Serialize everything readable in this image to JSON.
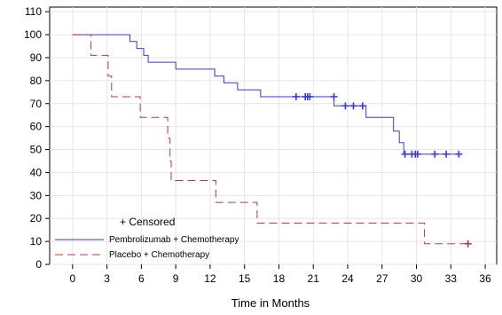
{
  "chart_data": {
    "type": "line",
    "step": true,
    "xlabel": "Time in Months",
    "ylabel": "",
    "xlim": [
      -2,
      37
    ],
    "ylim": [
      0,
      112
    ],
    "xticks": [
      0,
      3,
      6,
      9,
      12,
      15,
      18,
      21,
      24,
      27,
      30,
      33,
      36
    ],
    "yticks": [
      0,
      10,
      20,
      30,
      40,
      50,
      60,
      70,
      80,
      90,
      100,
      110
    ],
    "grid": true,
    "legend_position": "bottom-left",
    "legend_title": "+ Censored",
    "series": [
      {
        "name": "Pembrolizumab + Chemotherapy",
        "color": "#3a3ad4",
        "line_style": "solid",
        "points": [
          [
            0,
            100
          ],
          [
            5,
            100
          ],
          [
            5,
            97
          ],
          [
            5.6,
            97
          ],
          [
            5.6,
            94
          ],
          [
            6.2,
            94
          ],
          [
            6.2,
            91
          ],
          [
            6.6,
            91
          ],
          [
            6.6,
            88
          ],
          [
            9,
            88
          ],
          [
            9,
            85
          ],
          [
            12.4,
            85
          ],
          [
            12.4,
            82
          ],
          [
            13.2,
            82
          ],
          [
            13.2,
            79
          ],
          [
            14.4,
            79
          ],
          [
            14.4,
            76
          ],
          [
            16.4,
            76
          ],
          [
            16.4,
            73
          ],
          [
            22.8,
            73
          ],
          [
            22.8,
            69
          ],
          [
            25.6,
            69
          ],
          [
            25.6,
            64
          ],
          [
            28,
            64
          ],
          [
            28,
            58
          ],
          [
            28.5,
            58
          ],
          [
            28.5,
            53
          ],
          [
            28.9,
            53
          ],
          [
            28.9,
            48
          ],
          [
            33.7,
            48
          ]
        ],
        "censored": [
          [
            19.5,
            73
          ],
          [
            20.3,
            73
          ],
          [
            20.5,
            73
          ],
          [
            20.7,
            73
          ],
          [
            22.8,
            73
          ],
          [
            23.8,
            69
          ],
          [
            24.5,
            69
          ],
          [
            25.3,
            69
          ],
          [
            29,
            48
          ],
          [
            29.6,
            48
          ],
          [
            29.9,
            48
          ],
          [
            30.1,
            48
          ],
          [
            31.6,
            48
          ],
          [
            32.6,
            48
          ],
          [
            33.7,
            48
          ]
        ]
      },
      {
        "name": "Placebo + Chemotherapy",
        "color": "#b03a48",
        "line_style": "dashed",
        "points": [
          [
            0,
            100
          ],
          [
            1.6,
            100
          ],
          [
            1.6,
            91
          ],
          [
            3.1,
            91
          ],
          [
            3.1,
            82
          ],
          [
            3.4,
            82
          ],
          [
            3.4,
            73
          ],
          [
            5.9,
            73
          ],
          [
            5.9,
            64
          ],
          [
            8.3,
            64
          ],
          [
            8.3,
            55
          ],
          [
            8.5,
            55
          ],
          [
            8.5,
            45
          ],
          [
            8.6,
            45
          ],
          [
            8.6,
            36.5
          ],
          [
            12.5,
            36.5
          ],
          [
            12.5,
            27
          ],
          [
            16.1,
            27
          ],
          [
            16.1,
            18
          ],
          [
            30.7,
            18
          ],
          [
            30.7,
            9
          ],
          [
            34.5,
            9
          ]
        ],
        "censored": [
          [
            34.5,
            9
          ]
        ]
      }
    ]
  }
}
